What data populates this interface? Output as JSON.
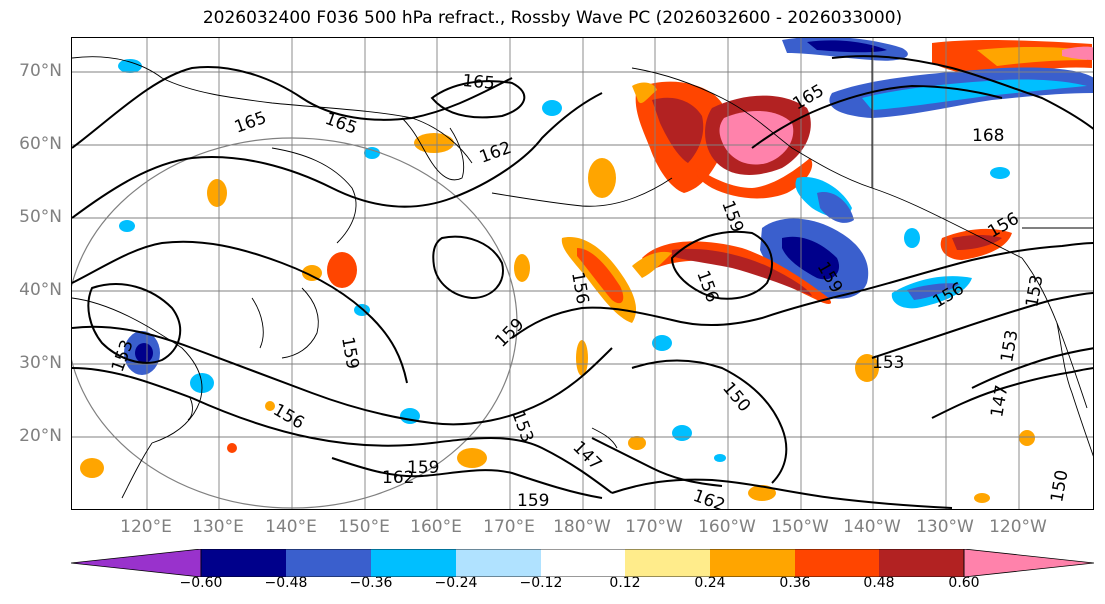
{
  "title": "2026032400 F036 500 hPa refract., Rossby Wave PC (2026032600 - 2026033000)",
  "lat_labels": [
    "70°N",
    "60°N",
    "50°N",
    "40°N",
    "30°N",
    "20°N"
  ],
  "lon_labels": [
    "120°E",
    "130°E",
    "140°E",
    "150°E",
    "160°E",
    "170°E",
    "180°W",
    "170°W",
    "160°W",
    "150°W",
    "140°W",
    "130°W",
    "120°W"
  ],
  "contour_labels": [
    "165",
    "165",
    "165",
    "165",
    "162",
    "168",
    "159",
    "159",
    "159",
    "159",
    "159",
    "156",
    "156",
    "156",
    "156",
    "156",
    "153",
    "153",
    "153",
    "153",
    "153",
    "150",
    "150",
    "147",
    "147",
    "162",
    "162",
    "159"
  ],
  "colorbar": {
    "colors": [
      "#9932cc",
      "#00008b",
      "#3a5fcd",
      "#00bfff",
      "#b0e2ff",
      "#ffffff",
      "#ffec8b",
      "#ffa500",
      "#ff4500",
      "#b22222",
      "#ff82ab"
    ],
    "ticks": [
      "−0.60",
      "−0.48",
      "−0.36",
      "−0.24",
      "−0.12",
      "0.12",
      "0.24",
      "0.36",
      "0.48",
      "0.60"
    ]
  },
  "colors": {
    "contour": "#000000",
    "coastline": "#000000",
    "grid": "#808080",
    "great_circle": "#808080"
  }
}
